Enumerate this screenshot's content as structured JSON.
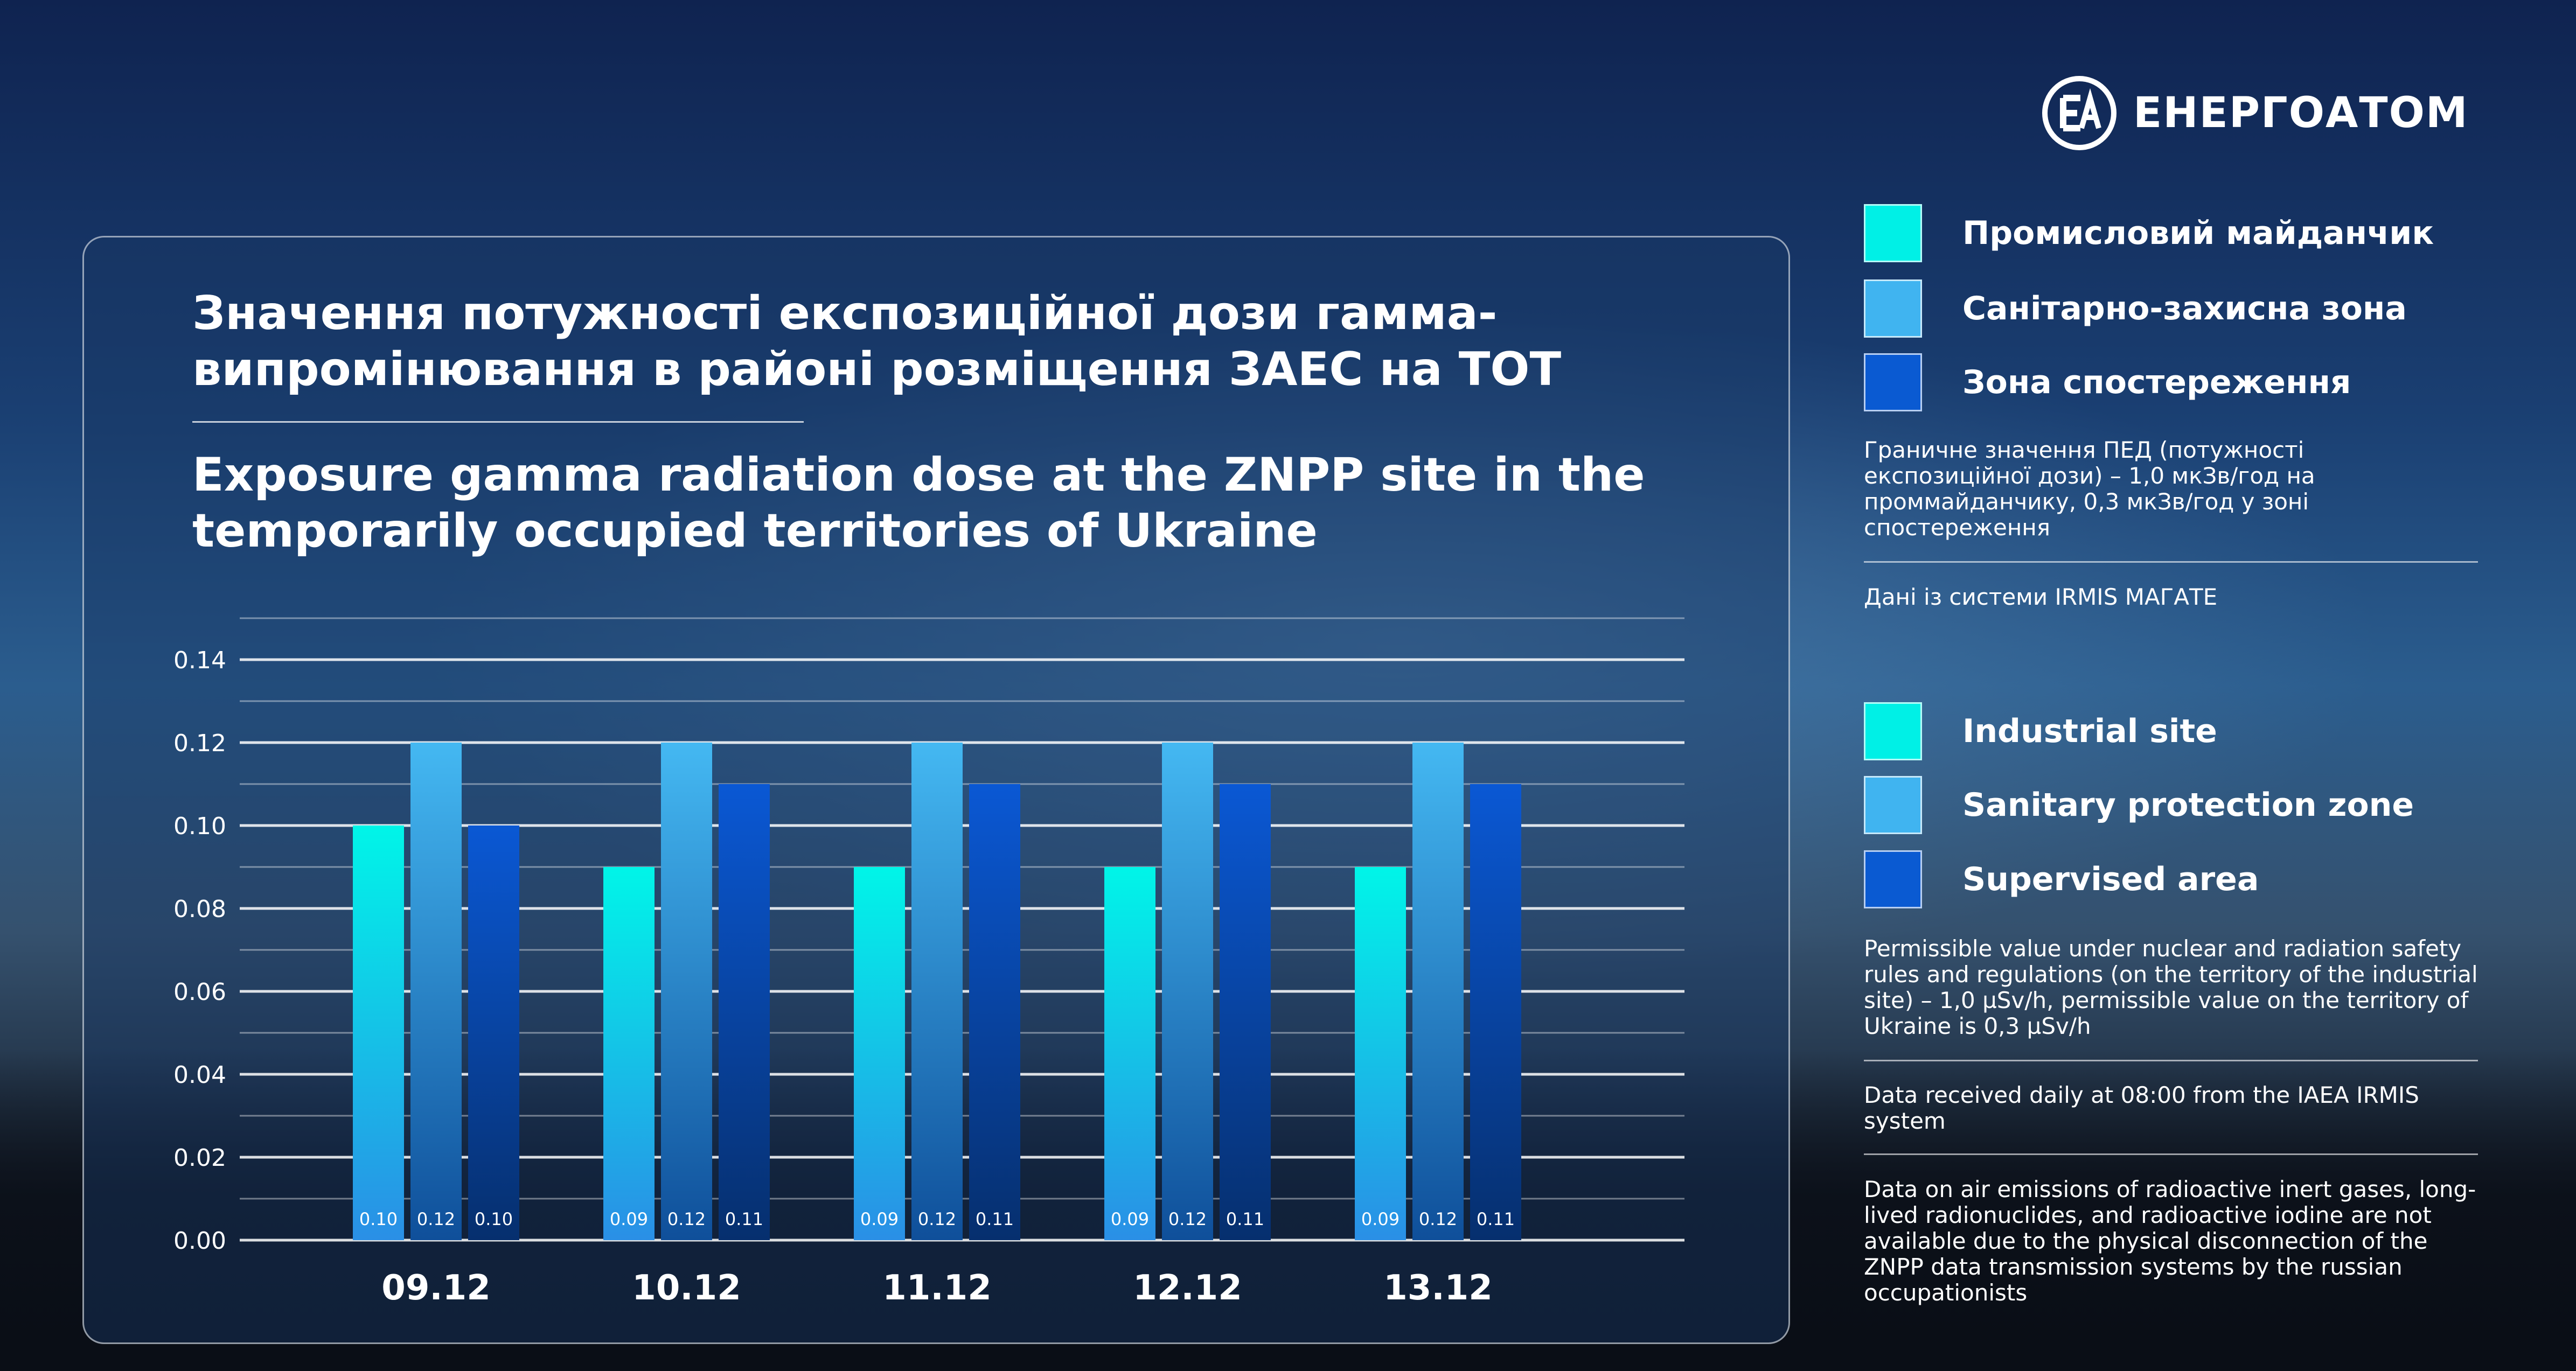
{
  "brand": {
    "name": "ЕНЕРГОАТОМ",
    "logo_icon": "energoatom-logo-icon"
  },
  "title_uk": "Значення потужності експозиційної дози гамма-випромінювання в районі розміщення ЗАЕС на ТОТ",
  "title_en": "Exposure gamma radiation dose at the ZNPP site in the temporarily occupied territories of Ukraine",
  "legend_uk": [
    {
      "label": "Промисловий майданчик",
      "color": "#00f0e6"
    },
    {
      "label": "Санітарно-захисна зона",
      "color": "#40b4f0"
    },
    {
      "label": "Зона спостереження",
      "color": "#0a5ad2"
    }
  ],
  "note_uk_limit": "Граничне значення ПЕД (потужності експозиційної дози) – 1,0 мкЗв/год на проммайданчику, 0,3 мкЗв/год у зоні спостереження",
  "note_uk_source": "Дані із системи IRMIS МАГАТЕ",
  "legend_en": [
    {
      "label": "Industrial site",
      "color": "#00f0e6"
    },
    {
      "label": "Sanitary protection zone",
      "color": "#40b4f0"
    },
    {
      "label": "Supervised area",
      "color": "#0a5ad2"
    }
  ],
  "note_en_limit": "Permissible value under nuclear and radiation safety rules and regulations (on the territory of the industrial site) – 1,0 µSv/h, permissible value on the territory of Ukraine is 0,3 µSv/h",
  "note_en_source": "Data received daily at 08:00 from the IAEA IRMIS system",
  "note_en_emissions": "Data on air emissions of radioactive inert gases, long-lived radionuclides, and radioactive iodine are not available due to the physical disconnection of the ZNPP data transmission systems by the russian occupationists",
  "chart_data": {
    "type": "bar",
    "categories": [
      "09.12",
      "10.12",
      "11.12",
      "12.12",
      "13.12"
    ],
    "series": [
      {
        "name": "Industrial site",
        "color": "#00f0e6",
        "values": [
          0.1,
          0.09,
          0.09,
          0.09,
          0.09
        ],
        "labels": [
          "0.10",
          "0.09",
          "0.09",
          "0.09",
          "0.09"
        ]
      },
      {
        "name": "Sanitary protection zone",
        "color": "#40b4f0",
        "values": [
          0.12,
          0.12,
          0.12,
          0.12,
          0.12
        ],
        "labels": [
          "0.12",
          "0.12",
          "0.12",
          "0.12",
          "0.12"
        ]
      },
      {
        "name": "Supervised area",
        "color": "#0a5ad2",
        "values": [
          0.1,
          0.11,
          0.11,
          0.11,
          0.11
        ],
        "labels": [
          "0.10",
          "0.11",
          "0.11",
          "0.11",
          "0.11"
        ]
      }
    ],
    "yticks": [
      "0.00",
      "0.02",
      "0.04",
      "0.06",
      "0.08",
      "0.10",
      "0.12",
      "0.14"
    ],
    "ylim": [
      0,
      0.15
    ],
    "grid": true
  }
}
